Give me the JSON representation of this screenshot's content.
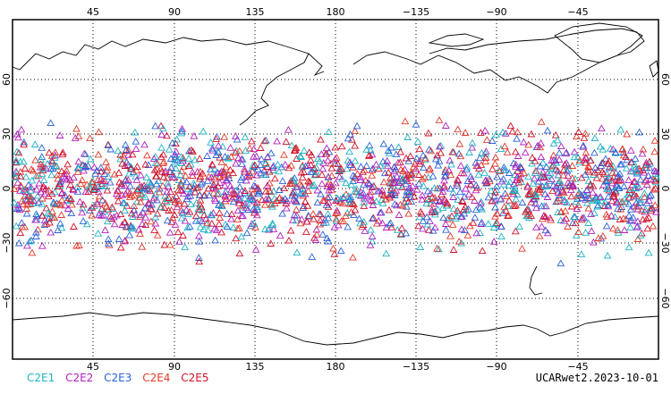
{
  "map": {
    "top_lon_labels": [
      "45",
      "90",
      "135",
      "180",
      "−135",
      "−90",
      "−45"
    ],
    "bottom_lon_labels": [
      "45",
      "90",
      "135",
      "180",
      "−135",
      "−90",
      "−45"
    ],
    "left_lat_labels": [
      "60",
      "30",
      "0",
      "−30",
      "−60"
    ],
    "right_lat_labels": [
      "60",
      "30",
      "0",
      "−30",
      "−60"
    ]
  },
  "legend": [
    {
      "label": "C2E1",
      "color": "#1fb3c4"
    },
    {
      "label": "C2E2",
      "color": "#b020c0"
    },
    {
      "label": "C2E3",
      "color": "#2a62d8"
    },
    {
      "label": "C2E4",
      "color": "#e23a2a"
    },
    {
      "label": "C2E5",
      "color": "#d0102a"
    }
  ],
  "stamp": "UCARwet2.2023-10-01"
}
